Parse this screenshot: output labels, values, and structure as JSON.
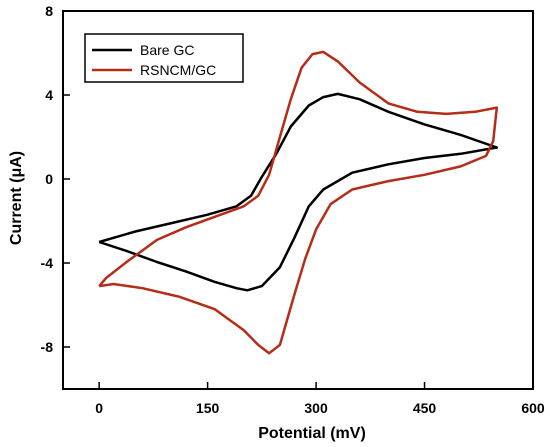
{
  "chart_data": {
    "type": "line",
    "title": "",
    "xlabel": "Potential (mV)",
    "ylabel": "Current (μA)",
    "xlim": [
      -50,
      600
    ],
    "ylim": [
      -10,
      8
    ],
    "xticks": [
      0,
      150,
      300,
      450,
      600
    ],
    "yticks": [
      -8,
      -4,
      0,
      4,
      8
    ],
    "grid": false,
    "legend_position": "top-left",
    "series": [
      {
        "name": "Bare GC",
        "color": "#000000",
        "points": [
          [
            0,
            -3.0
          ],
          [
            40,
            -3.45
          ],
          [
            80,
            -3.95
          ],
          [
            120,
            -4.4
          ],
          [
            160,
            -4.9
          ],
          [
            190,
            -5.2
          ],
          [
            205,
            -5.3
          ],
          [
            225,
            -5.1
          ],
          [
            250,
            -4.2
          ],
          [
            270,
            -2.8
          ],
          [
            290,
            -1.3
          ],
          [
            310,
            -0.5
          ],
          [
            350,
            0.3
          ],
          [
            400,
            0.7
          ],
          [
            450,
            1.0
          ],
          [
            500,
            1.2
          ],
          [
            550,
            1.5
          ],
          [
            500,
            2.1
          ],
          [
            450,
            2.6
          ],
          [
            400,
            3.2
          ],
          [
            360,
            3.8
          ],
          [
            330,
            4.05
          ],
          [
            310,
            3.9
          ],
          [
            290,
            3.5
          ],
          [
            265,
            2.5
          ],
          [
            245,
            1.2
          ],
          [
            225,
            0.1
          ],
          [
            210,
            -0.8
          ],
          [
            190,
            -1.3
          ],
          [
            150,
            -1.7
          ],
          [
            100,
            -2.1
          ],
          [
            50,
            -2.5
          ],
          [
            0,
            -3.0
          ]
        ]
      },
      {
        "name": "RSNCM/GC",
        "color": "#b52c18",
        "points": [
          [
            0,
            -5.1
          ],
          [
            20,
            -5.0
          ],
          [
            60,
            -5.2
          ],
          [
            110,
            -5.6
          ],
          [
            160,
            -6.2
          ],
          [
            200,
            -7.2
          ],
          [
            220,
            -7.9
          ],
          [
            235,
            -8.3
          ],
          [
            250,
            -7.9
          ],
          [
            270,
            -5.5
          ],
          [
            285,
            -3.8
          ],
          [
            300,
            -2.4
          ],
          [
            320,
            -1.2
          ],
          [
            350,
            -0.5
          ],
          [
            400,
            -0.1
          ],
          [
            450,
            0.2
          ],
          [
            500,
            0.6
          ],
          [
            535,
            1.1
          ],
          [
            545,
            1.8
          ],
          [
            550,
            3.4
          ],
          [
            520,
            3.2
          ],
          [
            480,
            3.1
          ],
          [
            440,
            3.2
          ],
          [
            400,
            3.6
          ],
          [
            360,
            4.6
          ],
          [
            330,
            5.6
          ],
          [
            310,
            6.05
          ],
          [
            295,
            5.95
          ],
          [
            280,
            5.3
          ],
          [
            265,
            3.8
          ],
          [
            250,
            2.0
          ],
          [
            235,
            0.2
          ],
          [
            220,
            -0.8
          ],
          [
            200,
            -1.3
          ],
          [
            160,
            -1.8
          ],
          [
            120,
            -2.3
          ],
          [
            80,
            -2.9
          ],
          [
            40,
            -3.9
          ],
          [
            10,
            -4.7
          ],
          [
            0,
            -5.1
          ]
        ]
      }
    ]
  }
}
